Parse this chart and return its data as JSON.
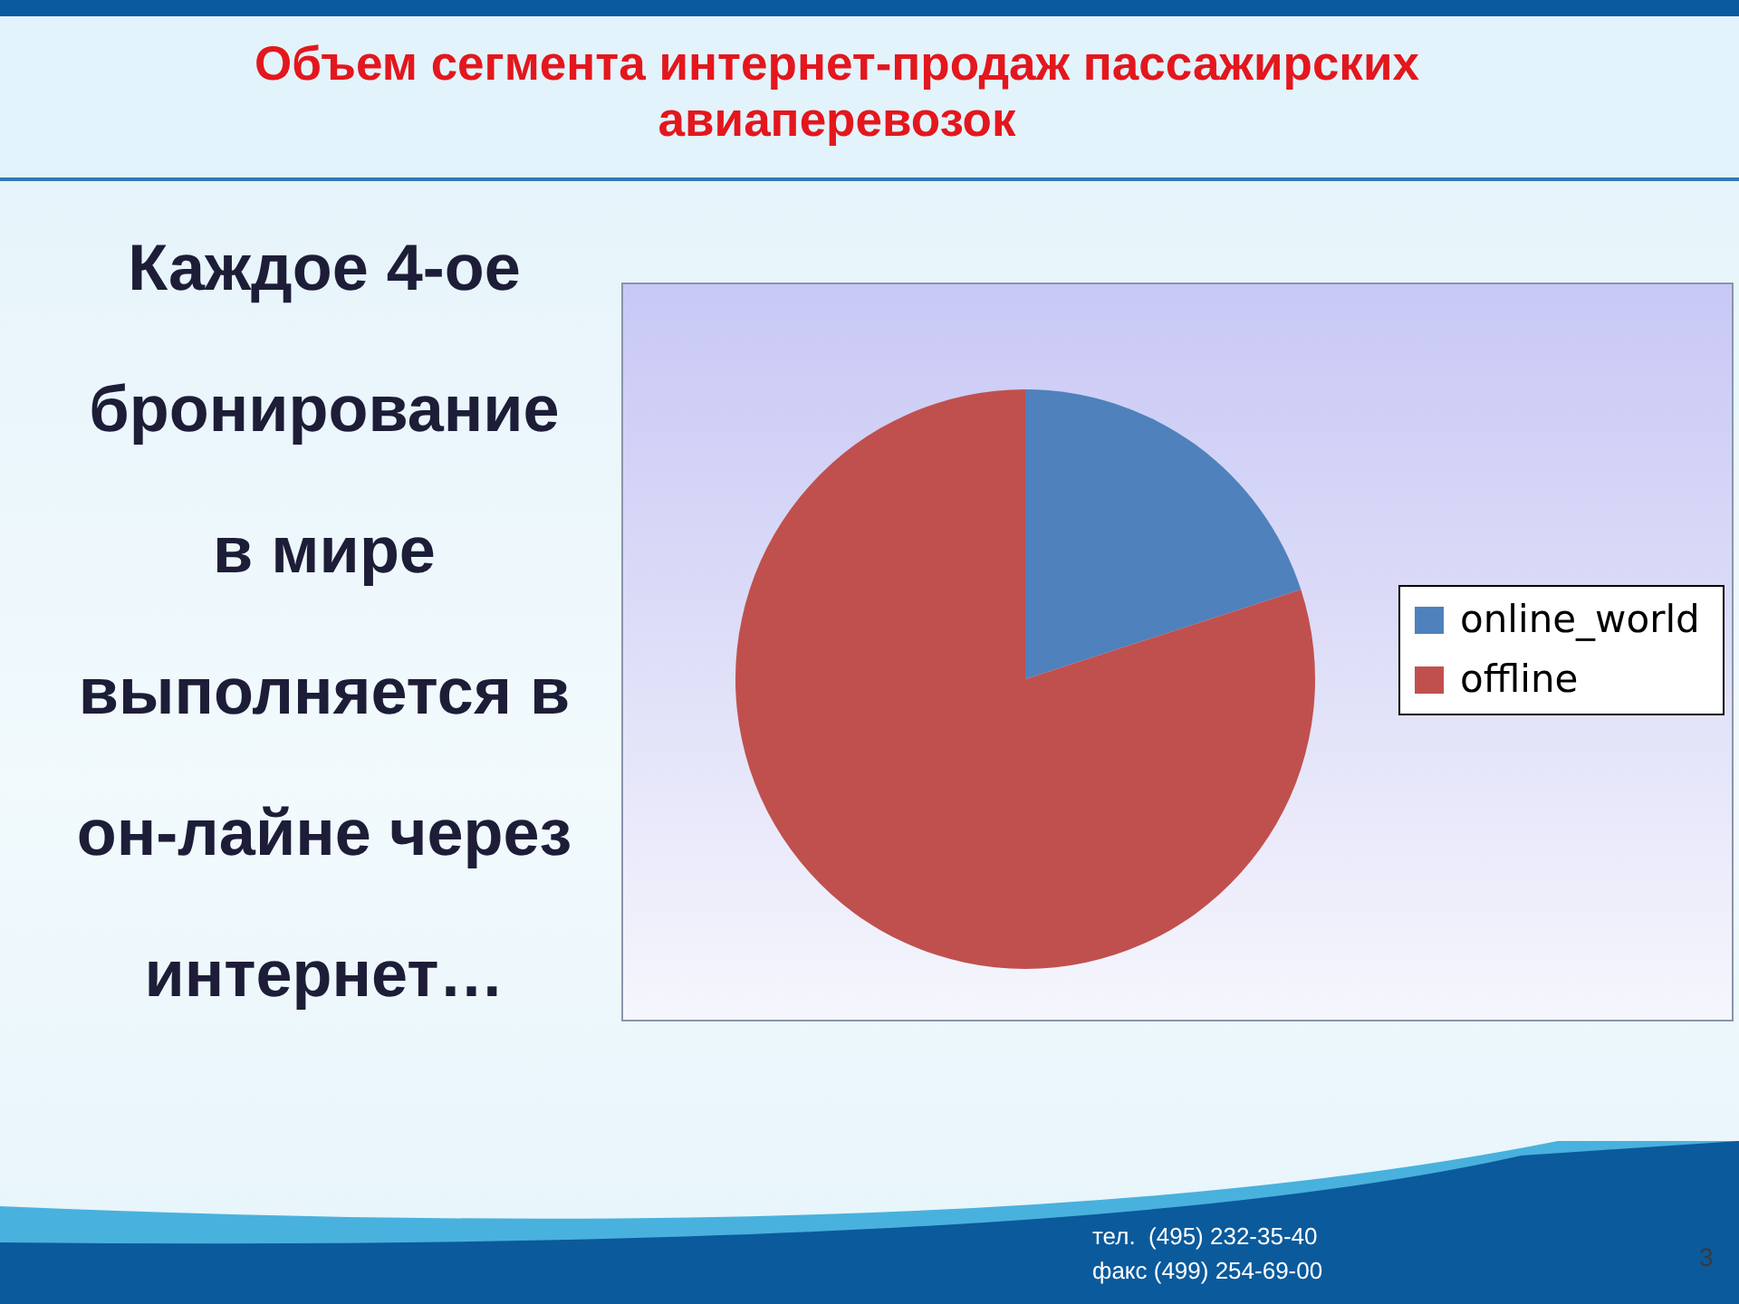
{
  "chart_data": {
    "type": "pie",
    "title": "Объем сегмента интернет-продаж пассажирских авиаперевозок",
    "categories": [
      "online_world",
      "offline"
    ],
    "values": [
      20,
      80
    ],
    "colors": [
      "#4f81bd",
      "#c0504d"
    ],
    "legend": "right",
    "annotations": [
      "Каждое 4-ое\nбронирование\nв мире\nвыполняется в\nон-лайне через\nинтернет…",
      "тел.  (495) 232-35-40",
      "факс (499) 254-69-00",
      "3"
    ]
  }
}
